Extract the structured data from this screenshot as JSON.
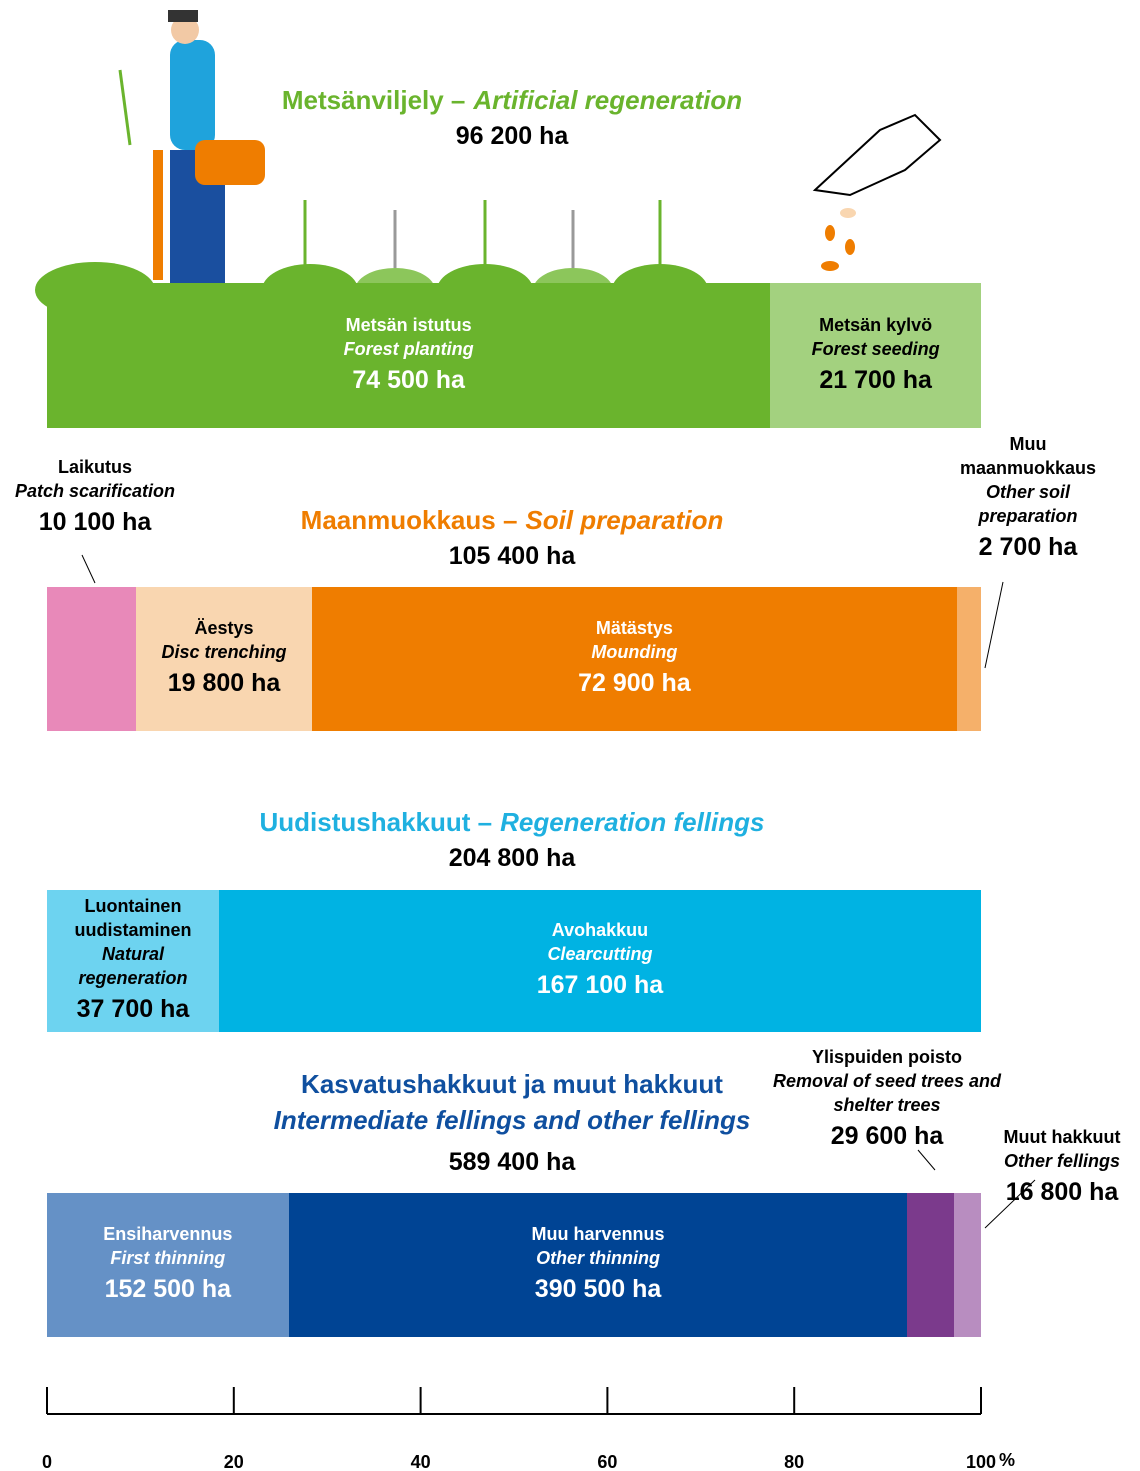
{
  "chart_data": {
    "type": "stacked-bar",
    "xlim": [
      0,
      100
    ],
    "xticks": [
      0,
      20,
      40,
      60,
      80,
      100
    ],
    "x_unit": "%",
    "bars": [
      {
        "title": "Metsänviljely –",
        "title_en": "Artificial regeneration",
        "title_color": "#6ab42d",
        "total": 96200,
        "total_label": "96 200 ha",
        "segments": [
          {
            "name": "Metsän istutus",
            "name_en": "Forest planting",
            "value": 74500,
            "value_label": "74 500 ha",
            "color": "#6ab42d",
            "label_color": "#ffffff"
          },
          {
            "name": "Metsän kylvö",
            "name_en": "Forest seeding",
            "value": 21700,
            "value_label": "21 700 ha",
            "color": "#a3d17f",
            "label_color": "#000000"
          }
        ]
      },
      {
        "title": "Maanmuokkaus –",
        "title_en": "Soil preparation",
        "title_color": "#ef7d00",
        "total": 105400,
        "total_label": "105 400 ha",
        "segments": [
          {
            "name": "Laikutus",
            "name_en": "Patch scarification",
            "value": 10100,
            "value_label": "10 100 ha",
            "color": "#e889b9",
            "label_color": "#000000"
          },
          {
            "name": "Äestys",
            "name_en": "Disc trenching",
            "value": 19800,
            "value_label": "19 800 ha",
            "color": "#f9d6b0",
            "label_color": "#000000"
          },
          {
            "name": "Mätästys",
            "name_en": "Mounding",
            "value": 72900,
            "value_label": "72 900 ha",
            "color": "#ef7d00",
            "label_color": "#ffffff"
          },
          {
            "name": "Muu maanmuokkaus",
            "name_en": "Other soil preparation",
            "value": 2700,
            "value_label": "2 700 ha",
            "color": "#f5b06a",
            "label_color": "#000000"
          }
        ]
      },
      {
        "title": "Uudistushakkuut –",
        "title_en": "Regeneration fellings",
        "title_color": "#1fb0e0",
        "total": 204800,
        "total_label": "204 800 ha",
        "segments": [
          {
            "name": "Luontainen uudistaminen",
            "name_en": "Natural regeneration",
            "value": 37700,
            "value_label": "37 700 ha",
            "color": "#6dd3f0",
            "label_color": "#000000"
          },
          {
            "name": "Avohakkuu",
            "name_en": "Clearcutting",
            "value": 167100,
            "value_label": "167 100 ha",
            "color": "#00b3e3",
            "label_color": "#ffffff"
          }
        ]
      },
      {
        "title": "Kasvatushakkuut ja muut hakkuut",
        "title_en": "Intermediate fellings and other fellings",
        "title_color": "#0f4f9f",
        "total": 589400,
        "total_label": "589 400 ha",
        "segments": [
          {
            "name": "Ensiharvennus",
            "name_en": "First thinning",
            "value": 152500,
            "value_label": "152 500 ha",
            "color": "#6591c6",
            "label_color": "#ffffff"
          },
          {
            "name": "Muu harvennus",
            "name_en": "Other thinning",
            "value": 390500,
            "value_label": "390 500 ha",
            "color": "#004494",
            "label_color": "#ffffff"
          },
          {
            "name": "Ylispuiden poisto",
            "name_en": "Removal of seed trees and shelter trees",
            "value": 29600,
            "value_label": "29 600 ha",
            "color": "#7b3a8c",
            "label_color": "#000000"
          },
          {
            "name": "Muut hakkuut",
            "name_en": "Other fellings",
            "value": 16800,
            "value_label": "16 800 ha",
            "color": "#b88dc0",
            "label_color": "#000000"
          }
        ]
      }
    ]
  }
}
